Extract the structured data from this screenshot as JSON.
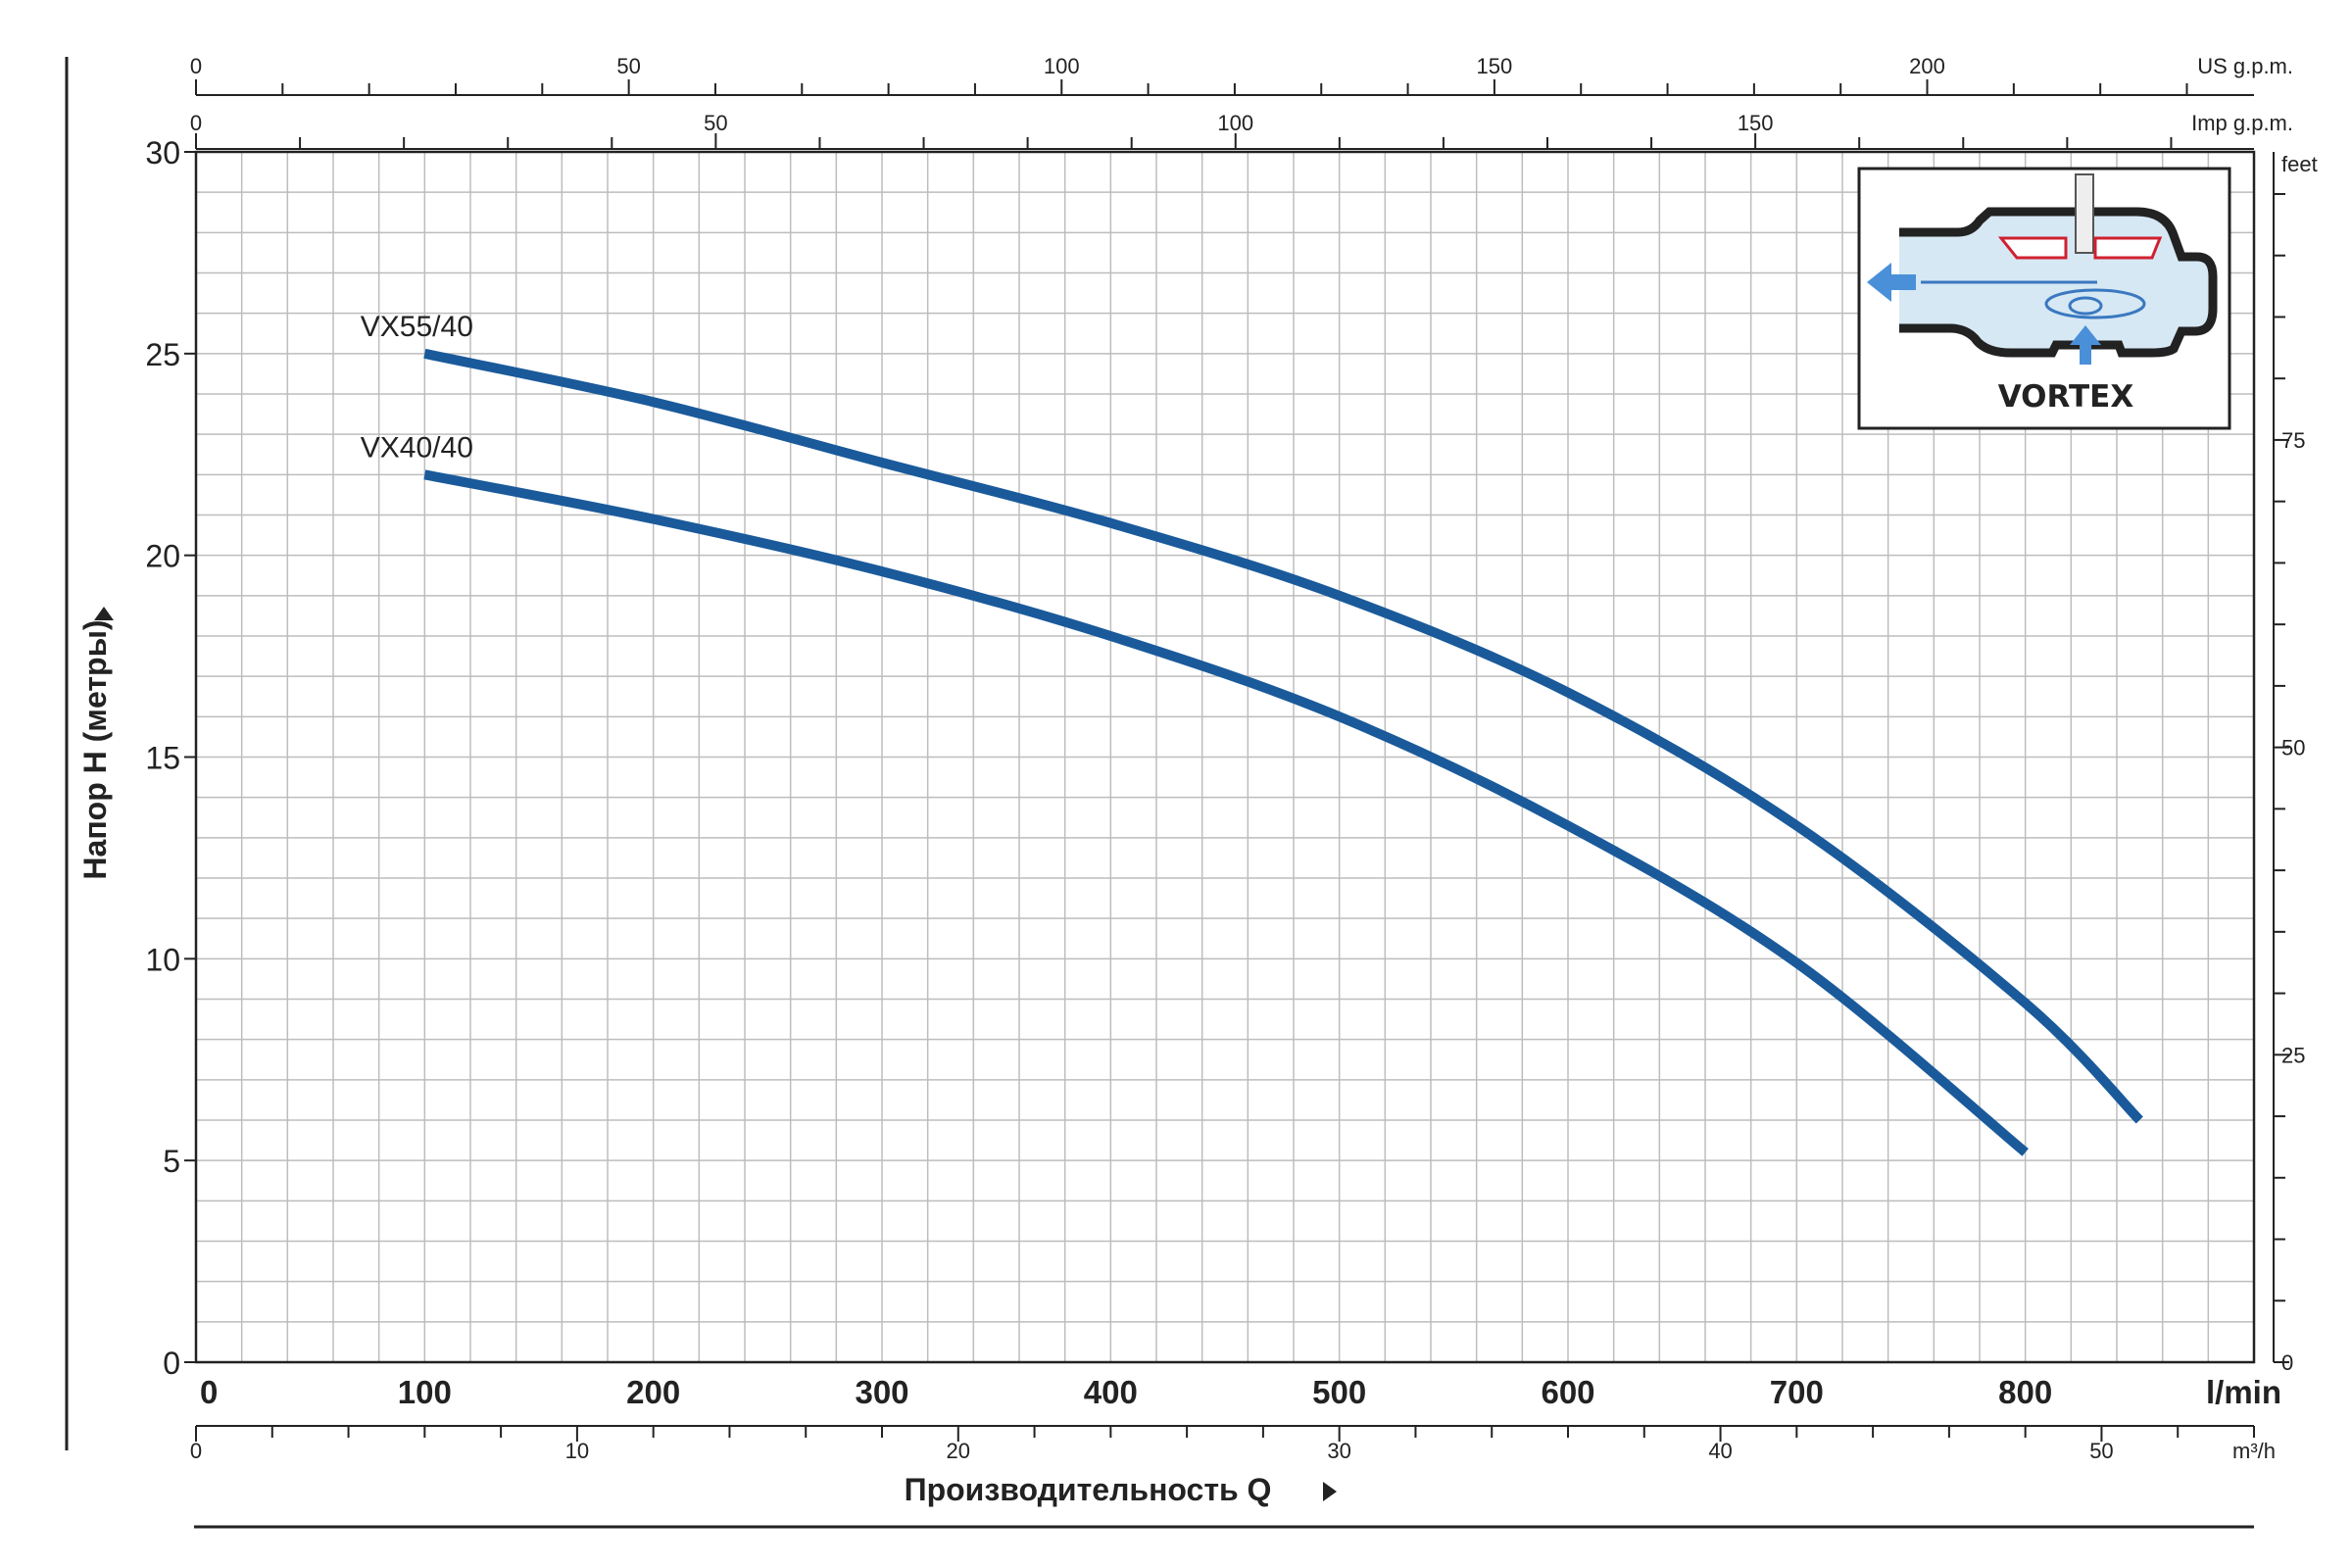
{
  "chart_data": {
    "type": "line",
    "xlabel": "Производительность Q",
    "ylabel": "Напор H (метры)",
    "x_unit": "l/min",
    "xlim": [
      0,
      900
    ],
    "ylim": [
      0,
      30
    ],
    "x_ticks": [
      0,
      100,
      200,
      300,
      400,
      500,
      600,
      700,
      800
    ],
    "y_ticks": [
      0,
      5,
      10,
      15,
      20,
      25,
      30
    ],
    "grid": true,
    "secondary_axes": {
      "us_gpm": {
        "label": "US g.p.m.",
        "ticks": [
          0,
          50,
          100,
          150,
          200
        ]
      },
      "imp_gpm": {
        "label": "Imp g.p.m.",
        "ticks": [
          0,
          50,
          100,
          150
        ]
      },
      "m3h": {
        "label": "m³/h",
        "ticks": [
          0,
          10,
          20,
          30,
          40,
          50
        ]
      },
      "feet": {
        "label": "feet",
        "ticks": [
          0,
          25,
          50,
          75
        ]
      }
    },
    "series": [
      {
        "name": "VX55/40",
        "color": "#1a5a9a",
        "x": [
          100,
          200,
          300,
          400,
          500,
          600,
          700,
          800,
          850
        ],
        "y": [
          25,
          23.8,
          22.3,
          20.8,
          19.0,
          16.6,
          13.3,
          8.9,
          6.0
        ]
      },
      {
        "name": "VX40/40",
        "color": "#1a5a9a",
        "x": [
          100,
          200,
          300,
          400,
          500,
          600,
          700,
          800
        ],
        "y": [
          22,
          20.9,
          19.6,
          18.0,
          16.0,
          13.3,
          9.9,
          5.2
        ]
      }
    ],
    "inset": {
      "label": "VORTEX"
    }
  }
}
